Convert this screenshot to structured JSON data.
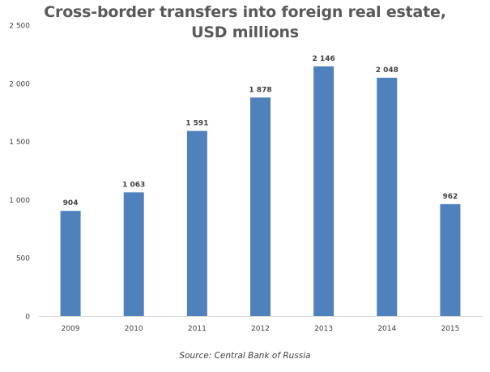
{
  "colors": {
    "bar": "#4f81bd",
    "text": "#595959",
    "axis": "#d9d9d9"
  },
  "chart_data": {
    "type": "bar",
    "title_lines": [
      "Cross-border transfers into foreign real estate,",
      "USD millions"
    ],
    "categories": [
      "2009",
      "2010",
      "2011",
      "2012",
      "2013",
      "2014",
      "2015"
    ],
    "values": [
      904,
      1063,
      1591,
      1878,
      2146,
      2048,
      962
    ],
    "value_labels": [
      "904",
      "1 063",
      "1 591",
      "1 878",
      "2 146",
      "2 048",
      "962"
    ],
    "ylim": [
      0,
      2500
    ],
    "yticks": [
      0,
      500,
      1000,
      1500,
      2000,
      2500
    ],
    "ytick_labels": [
      "0",
      "500",
      "1 000",
      "1 500",
      "2 000",
      "2 500"
    ],
    "grid": false,
    "legend": "none",
    "source": "Source: Central Bank of Russia"
  }
}
